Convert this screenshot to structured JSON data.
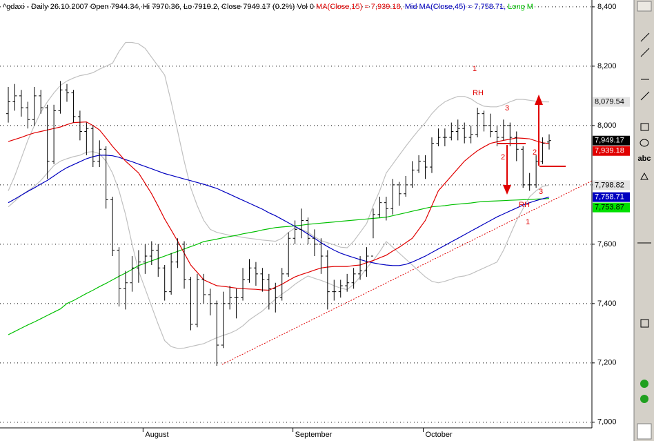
{
  "chart_data": {
    "type": "ohlc",
    "title_parts": [
      {
        "text": "^gdaxi - Daily 26.10.2007 Open 7944.34, Hi 7970.36, Lo 7919.2, Close 7949.17 (0.2%) Vol 0 ",
        "color": "#000000"
      },
      {
        "text": "MA(Close,15) = 7,939.18, ",
        "color": "#e00000"
      },
      {
        "text": "Mid MA(Close,45) = 7,758.71, ",
        "color": "#0000c0"
      },
      {
        "text": "Long M",
        "color": "#00c000"
      }
    ],
    "categories": [
      null,
      null,
      null,
      null,
      null,
      null,
      null,
      null,
      null,
      null,
      null,
      null,
      null,
      null,
      null,
      null,
      null,
      null,
      null,
      null,
      null,
      "August",
      null,
      null,
      null,
      null,
      null,
      null,
      null,
      null,
      null,
      null,
      null,
      null,
      null,
      null,
      null,
      null,
      null,
      null,
      null,
      null,
      null,
      null,
      "September",
      null,
      null,
      null,
      null,
      null,
      null,
      null,
      null,
      null,
      null,
      null,
      null,
      null,
      null,
      null,
      null,
      null,
      null,
      null,
      "October",
      null,
      null,
      null,
      null,
      null,
      null,
      null,
      null,
      null,
      null,
      null,
      null,
      null,
      null,
      null,
      null,
      null,
      null,
      null
    ],
    "ohlc": {
      "color": "#000000",
      "last_label": "7,949.17",
      "label_color": "#000000",
      "open": [
        8040,
        8080,
        8100,
        8060,
        8020,
        8100,
        8060,
        7880,
        8050,
        8120,
        8110,
        8030,
        7980,
        7990,
        7880,
        7920,
        7750,
        7580,
        7450,
        7470,
        7520,
        7540,
        7560,
        7580,
        7520,
        7440,
        7540,
        7600,
        7480,
        7330,
        7480,
        7430,
        7400,
        7260,
        7400,
        7420,
        7420,
        7480,
        7520,
        7500,
        7480,
        7450,
        7420,
        7500,
        7620,
        7650,
        7680,
        7620,
        7600,
        7560,
        7440,
        7440,
        7460,
        7470,
        7500,
        7510,
        7560,
        7700,
        7740,
        7720,
        7800,
        7770,
        7800,
        7850,
        7880,
        7860,
        7940,
        7960,
        7960,
        7980,
        7990,
        7960,
        7970,
        8040,
        8000,
        7980,
        7960,
        8000,
        7960,
        7920,
        7800,
        7800,
        7880,
        7944.34
      ],
      "high": [
        8130,
        8140,
        8120,
        8080,
        8130,
        8120,
        8070,
        8070,
        8150,
        8140,
        8120,
        8050,
        8010,
        8000,
        7950,
        7930,
        7760,
        7590,
        7510,
        7560,
        7580,
        7600,
        7610,
        7600,
        7530,
        7570,
        7620,
        7610,
        7490,
        7500,
        7500,
        7450,
        7410,
        7440,
        7460,
        7450,
        7520,
        7550,
        7540,
        7520,
        7500,
        7470,
        7520,
        7640,
        7680,
        7720,
        7690,
        7650,
        7620,
        7580,
        7480,
        7480,
        7500,
        7520,
        7560,
        7590,
        7720,
        7760,
        7760,
        7820,
        7810,
        7830,
        7880,
        7900,
        7900,
        7960,
        7990,
        7990,
        8010,
        8020,
        8010,
        8000,
        8060,
        8050,
        8040,
        8000,
        8020,
        8010,
        7980,
        7930,
        7840,
        7900,
        7960,
        7970.36
      ],
      "low": [
        8010,
        8050,
        8030,
        7990,
        8000,
        8040,
        7820,
        7870,
        8040,
        8080,
        8010,
        7950,
        7900,
        7860,
        7860,
        7720,
        7560,
        7390,
        7380,
        7440,
        7470,
        7500,
        7530,
        7490,
        7410,
        7430,
        7520,
        7450,
        7310,
        7320,
        7400,
        7360,
        7190,
        7250,
        7380,
        7350,
        7410,
        7470,
        7460,
        7440,
        7380,
        7370,
        7410,
        7490,
        7600,
        7620,
        7600,
        7560,
        7500,
        7380,
        7410,
        7420,
        7440,
        7450,
        7480,
        7490,
        7620,
        7690,
        7680,
        7700,
        7730,
        7760,
        7790,
        7840,
        7820,
        7840,
        7930,
        7930,
        7950,
        7950,
        7940,
        7940,
        7960,
        7980,
        7960,
        7930,
        7950,
        7930,
        7880,
        7790,
        7780,
        7790,
        7870,
        7919.2
      ],
      "close": [
        8080,
        8100,
        8060,
        8020,
        8100,
        8060,
        7880,
        8050,
        8120,
        8110,
        8030,
        7980,
        7990,
        7880,
        7920,
        7750,
        7580,
        7450,
        7470,
        7520,
        7540,
        7560,
        7580,
        7520,
        7440,
        7540,
        7600,
        7480,
        7330,
        7480,
        7430,
        7400,
        7260,
        7400,
        7420,
        7420,
        7480,
        7520,
        7500,
        7480,
        7450,
        7420,
        7500,
        7620,
        7650,
        7680,
        7620,
        7600,
        7560,
        7440,
        7440,
        7460,
        7470,
        7500,
        7510,
        7560,
        7700,
        7740,
        7720,
        7800,
        7770,
        7800,
        7850,
        7880,
        7860,
        7940,
        7960,
        7960,
        7980,
        7990,
        7960,
        7970,
        8040,
        8000,
        7980,
        7960,
        8000,
        7960,
        7920,
        7800,
        7800,
        7880,
        7940,
        7949.17
      ]
    },
    "series": [
      {
        "color": "#e00000",
        "last_label": "7,939.18",
        "label_color": "#e00000",
        "values": [
          7946,
          7953,
          7960,
          7968,
          7975,
          7980,
          7985,
          7990,
          7995,
          8003,
          8010,
          8011,
          8012,
          8000,
          7985,
          7958,
          7930,
          7905,
          7880,
          7860,
          7840,
          7805,
          7770,
          7728,
          7685,
          7648,
          7610,
          7570,
          7530,
          7505,
          7480,
          7470,
          7460,
          7458,
          7455,
          7452,
          7450,
          7449,
          7448,
          7446,
          7445,
          7455,
          7465,
          7478,
          7490,
          7498,
          7505,
          7513,
          7520,
          7523,
          7525,
          7525,
          7525,
          7528,
          7530,
          7538,
          7545,
          7554,
          7563,
          7577,
          7590,
          7605,
          7620,
          7650,
          7680,
          7730,
          7780,
          7805,
          7830,
          7855,
          7880,
          7898,
          7915,
          7928,
          7940,
          7945,
          7950,
          7954,
          7958,
          7957,
          7955,
          7948,
          7942,
          7939.18
        ]
      },
      {
        "color": "#0000c0",
        "last_label": "7,758.71",
        "label_color": "#0000c0",
        "values": [
          7740,
          7752,
          7765,
          7778,
          7790,
          7803,
          7815,
          7830,
          7845,
          7858,
          7868,
          7878,
          7888,
          7895,
          7900,
          7900,
          7898,
          7893,
          7885,
          7878,
          7870,
          7862,
          7854,
          7846,
          7838,
          7832,
          7826,
          7820,
          7814,
          7808,
          7802,
          7795,
          7788,
          7778,
          7768,
          7758,
          7748,
          7738,
          7728,
          7718,
          7706,
          7696,
          7684,
          7672,
          7660,
          7648,
          7634,
          7620,
          7605,
          7592,
          7580,
          7570,
          7562,
          7555,
          7548,
          7542,
          7537,
          7533,
          7530,
          7528,
          7528,
          7532,
          7540,
          7550,
          7560,
          7572,
          7584,
          7596,
          7608,
          7620,
          7632,
          7644,
          7656,
          7668,
          7680,
          7692,
          7702,
          7712,
          7722,
          7732,
          7740,
          7747,
          7753,
          7758.71
        ]
      },
      {
        "color": "#00c000",
        "last_label": "7,753.87",
        "label_color": "#00e000",
        "values": [
          7295,
          7306,
          7317,
          7328,
          7338,
          7349,
          7360,
          7371,
          7382,
          7400,
          7410,
          7422,
          7434,
          7445,
          7457,
          7468,
          7480,
          7492,
          7503,
          7515,
          7528,
          7536,
          7544,
          7552,
          7560,
          7568,
          7576,
          7584,
          7592,
          7600,
          7609,
          7613,
          7617,
          7622,
          7626,
          7630,
          7635,
          7639,
          7643,
          7648,
          7652,
          7656,
          7658,
          7660,
          7662,
          7664,
          7667,
          7669,
          7671,
          7673,
          7675,
          7677,
          7679,
          7681,
          7683,
          7685,
          7687,
          7689,
          7691,
          7696,
          7701,
          7706,
          7711,
          7716,
          7721,
          7726,
          7728,
          7730,
          7733,
          7735,
          7737,
          7739,
          7742,
          7744,
          7745,
          7746,
          7747,
          7748,
          7749,
          7750,
          7751,
          7752,
          7753,
          7753.87
        ]
      },
      {
        "color": "#c0c0c0",
        "last_label": "8,079.54",
        "label_color": "#e4e4e4",
        "values": [
          7780,
          7830,
          7890,
          7950,
          8000,
          8045,
          8080,
          8110,
          8135,
          8150,
          8160,
          8168,
          8172,
          8178,
          8190,
          8200,
          8210,
          8250,
          8280,
          8280,
          8275,
          8260,
          8230,
          8200,
          8170,
          8080,
          7980,
          7880,
          7790,
          7730,
          7680,
          7650,
          7640,
          7635,
          7630,
          7627,
          7623,
          7620,
          7617,
          7614,
          7612,
          7610,
          7620,
          7640,
          7655,
          7650,
          7640,
          7625,
          7612,
          7605,
          7598,
          7590,
          7588,
          7610,
          7640,
          7670,
          7730,
          7780,
          7840,
          7870,
          7900,
          7930,
          7958,
          7985,
          8010,
          8040,
          8063,
          8080,
          8090,
          8098,
          8098,
          8090,
          8075,
          8065,
          8063,
          8063,
          8070,
          8080,
          8088,
          8088,
          8085,
          8082,
          8080,
          8079.54
        ]
      },
      {
        "color": "#c0c0c0",
        "last_label": "7,798.82",
        "label_color": "#e4e4e4",
        "values": [
          7726,
          7745,
          7765,
          7780,
          7795,
          7815,
          7840,
          7865,
          7880,
          7888,
          7895,
          7900,
          7910,
          7912,
          7905,
          7880,
          7840,
          7780,
          7700,
          7600,
          7510,
          7450,
          7390,
          7330,
          7275,
          7255,
          7249,
          7250,
          7255,
          7260,
          7265,
          7275,
          7285,
          7293,
          7300,
          7310,
          7325,
          7345,
          7360,
          7375,
          7395,
          7415,
          7432,
          7447,
          7465,
          7480,
          7493,
          7485,
          7478,
          7470,
          7460,
          7452,
          7447,
          7465,
          7490,
          7520,
          7545,
          7575,
          7609,
          7590,
          7570,
          7550,
          7530,
          7510,
          7490,
          7475,
          7470,
          7475,
          7482,
          7490,
          7493,
          7500,
          7510,
          7520,
          7530,
          7540,
          7580,
          7630,
          7680,
          7720,
          7760,
          7780,
          7795,
          7798.82
        ]
      }
    ],
    "annotations": [
      {
        "text": "1"
      },
      {
        "text": "RH"
      },
      {
        "text": "3"
      },
      {
        "text": "2"
      },
      {
        "text": "2"
      },
      {
        "text": "3"
      },
      {
        "text": "RH"
      },
      {
        "text": "1"
      }
    ],
    "ylim": [
      6981,
      8423
    ],
    "yticks": [
      {
        "value": 7000,
        "label": "7,000"
      },
      {
        "value": 7200,
        "label": "7,200"
      },
      {
        "value": 7400,
        "label": "7,400"
      },
      {
        "value": 7600,
        "label": "7,600"
      },
      {
        "value": 7800,
        "label": "7,800"
      },
      {
        "value": 8000,
        "label": "8,000"
      },
      {
        "value": 8200,
        "label": "8,200"
      },
      {
        "value": 8400,
        "label": "8,400"
      }
    ],
    "grid": true
  },
  "toolbar": {
    "text_tool": "abc"
  }
}
